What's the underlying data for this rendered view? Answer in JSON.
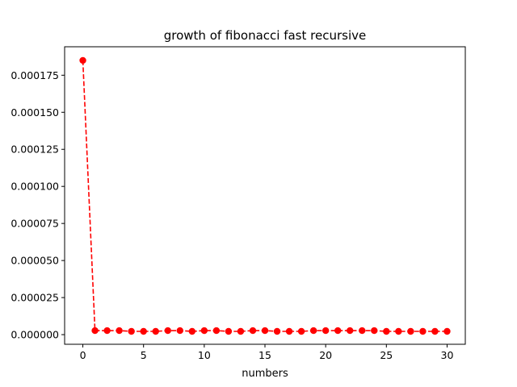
{
  "chart_data": {
    "type": "line",
    "title": "growth of fibonacci fast recursive",
    "xlabel": "numbers",
    "ylabel": "",
    "xlim": [
      -1.5,
      31.5
    ],
    "ylim": [
      -6.5e-06,
      0.0001942
    ],
    "x_ticks": [
      0,
      5,
      10,
      15,
      20,
      25,
      30
    ],
    "x_tick_labels": [
      "0",
      "5",
      "10",
      "15",
      "20",
      "25",
      "30"
    ],
    "y_ticks": [
      0,
      2.5e-05,
      5e-05,
      7.5e-05,
      0.0001,
      0.000125,
      0.00015,
      0.000175
    ],
    "y_tick_labels": [
      "0.000000",
      "0.000025",
      "0.000050",
      "0.000075",
      "0.000100",
      "0.000125",
      "0.000150",
      "0.000175"
    ],
    "grid": false,
    "line_color": "#ff0000",
    "line_style": "dashed",
    "marker": "circle",
    "series": [
      {
        "x": [
          0,
          1,
          2,
          3,
          4,
          5,
          6,
          7,
          8,
          9,
          10,
          11,
          12,
          13,
          14,
          15,
          16,
          17,
          18,
          19,
          20,
          21,
          22,
          23,
          24,
          25,
          26,
          27,
          28,
          29,
          30
        ],
        "y": [
          0.000185,
          2.7e-06,
          2.7e-06,
          2.7e-06,
          2.2e-06,
          2.2e-06,
          2.2e-06,
          2.7e-06,
          2.7e-06,
          2.2e-06,
          2.7e-06,
          2.7e-06,
          2.2e-06,
          2.2e-06,
          2.7e-06,
          2.7e-06,
          2.2e-06,
          2.2e-06,
          2.2e-06,
          2.7e-06,
          2.7e-06,
          2.7e-06,
          2.7e-06,
          2.7e-06,
          2.7e-06,
          2.2e-06,
          2.2e-06,
          2.2e-06,
          2.2e-06,
          2.2e-06,
          2.2e-06
        ]
      }
    ]
  }
}
